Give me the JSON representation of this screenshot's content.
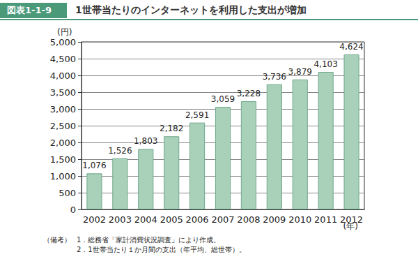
{
  "chart_data": {
    "type": "bar",
    "figure_label": "図表1-1-9",
    "title": "1世帯当たりのインターネットを利用した支出が増加",
    "ylabel": "(円)",
    "xlabel": "(年)",
    "categories": [
      "2002",
      "2003",
      "2004",
      "2005",
      "2006",
      "2007",
      "2008",
      "2009",
      "2010",
      "2011",
      "2012"
    ],
    "values": [
      1076,
      1526,
      1803,
      2182,
      2591,
      3059,
      3228,
      3736,
      3879,
      4103,
      4624
    ],
    "value_labels": [
      "1,076",
      "1,526",
      "1,803",
      "2,182",
      "2,591",
      "3,059",
      "3,228",
      "3,736",
      "3,879",
      "4,103",
      "4,624"
    ],
    "data_labels": true,
    "color": "#a9d1b9",
    "ylim": [
      0,
      5000
    ],
    "yticks": [
      0,
      500,
      {
        "value": 1000,
        "label": "1,000"
      },
      {
        "value": 1500,
        "label": "1,500"
      },
      {
        "value": 2000,
        "label": "2,000"
      },
      {
        "value": 2500,
        "label": "2,500"
      },
      {
        "value": 3000,
        "label": "3,000"
      },
      {
        "value": 3500,
        "label": "3,500"
      },
      {
        "value": 4000,
        "label": "4,000"
      },
      {
        "value": 4500,
        "label": "4,500"
      },
      {
        "value": 5000,
        "label": "5,000"
      }
    ],
    "grid": true,
    "notes_heading": "（備考）",
    "notes": [
      "1．総務省「家計消費状況調査」により作成。",
      "2．1世帯当たり１か月間の支出（年平均、総世帯）。"
    ]
  }
}
